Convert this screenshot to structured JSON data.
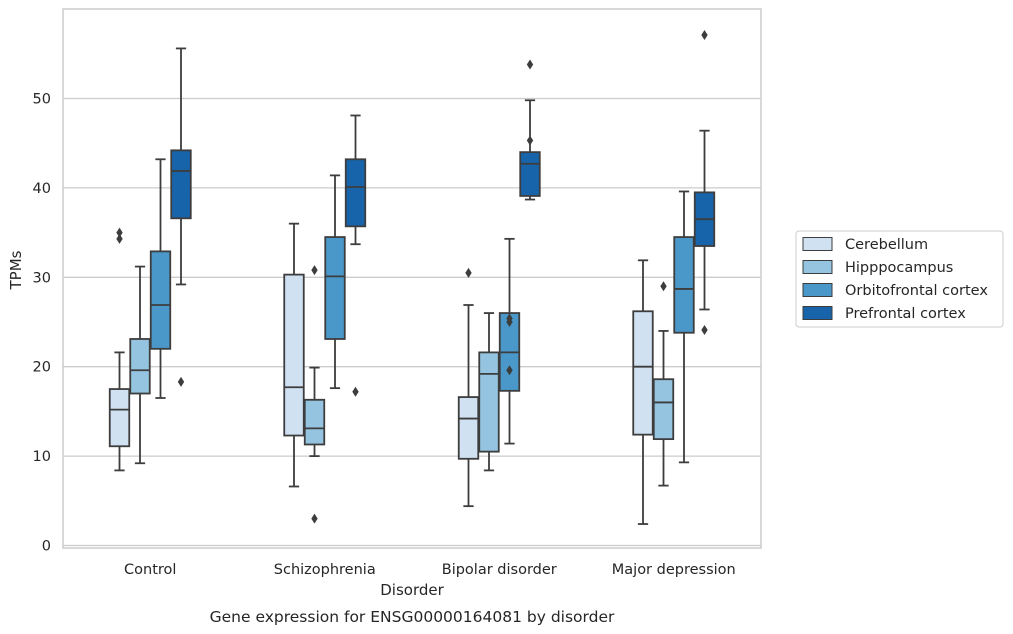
{
  "chart_data": {
    "type": "box",
    "caption": "Gene expression for ENSG00000164081 by disorder",
    "xlabel": "Disorder",
    "ylabel": "TPMs",
    "ylim": [
      0,
      58
    ],
    "yticks": [
      0,
      10,
      20,
      30,
      40,
      50
    ],
    "grid": true,
    "legend_position": "right",
    "categories": [
      "Control",
      "Schizophrenia",
      "Bipolar disorder",
      "Major depression"
    ],
    "series": [
      {
        "name": "Cerebellum",
        "color": "#d0e1f2",
        "boxes": [
          {
            "whisker_low": 8.4,
            "q1": 11.1,
            "median": 15.2,
            "q3": 17.5,
            "whisker_high": 21.6,
            "outliers": [
              34.3,
              35.0
            ]
          },
          {
            "whisker_low": 6.6,
            "q1": 12.3,
            "median": 17.7,
            "q3": 30.3,
            "whisker_high": 36.0,
            "outliers": []
          },
          {
            "whisker_low": 4.4,
            "q1": 9.7,
            "median": 14.2,
            "q3": 16.6,
            "whisker_high": 26.9,
            "outliers": [
              30.5
            ]
          },
          {
            "whisker_low": 2.4,
            "q1": 12.4,
            "median": 20.0,
            "q3": 26.2,
            "whisker_high": 31.9,
            "outliers": []
          }
        ]
      },
      {
        "name": "Hipppocampus",
        "color": "#94c4df",
        "boxes": [
          {
            "whisker_low": 9.2,
            "q1": 17.0,
            "median": 19.6,
            "q3": 23.1,
            "whisker_high": 31.2,
            "outliers": []
          },
          {
            "whisker_low": 10.0,
            "q1": 11.3,
            "median": 13.1,
            "q3": 16.3,
            "whisker_high": 19.9,
            "outliers": [
              3.0,
              30.8
            ]
          },
          {
            "whisker_low": 8.4,
            "q1": 10.5,
            "median": 19.2,
            "q3": 21.6,
            "whisker_high": 26.0,
            "outliers": []
          },
          {
            "whisker_low": 6.7,
            "q1": 11.9,
            "median": 16.0,
            "q3": 18.6,
            "whisker_high": 24.0,
            "outliers": [
              29.0
            ]
          }
        ]
      },
      {
        "name": "Orbitofrontal cortex",
        "color": "#4a98c9",
        "boxes": [
          {
            "whisker_low": 16.5,
            "q1": 22.0,
            "median": 26.9,
            "q3": 32.9,
            "whisker_high": 43.2,
            "outliers": []
          },
          {
            "whisker_low": 17.6,
            "q1": 23.1,
            "median": 30.1,
            "q3": 34.5,
            "whisker_high": 41.4,
            "outliers": []
          },
          {
            "whisker_low": 11.4,
            "q1": 17.3,
            "median": 21.6,
            "q3": 26.0,
            "whisker_high": 34.3,
            "outliers": [
              19.6,
              25.0,
              25.4
            ]
          },
          {
            "whisker_low": 9.3,
            "q1": 23.8,
            "median": 28.7,
            "q3": 34.5,
            "whisker_high": 39.6,
            "outliers": []
          }
        ]
      },
      {
        "name": "Prefrontal cortex",
        "color": "#1764ab",
        "boxes": [
          {
            "whisker_low": 29.2,
            "q1": 36.6,
            "median": 41.9,
            "q3": 44.2,
            "whisker_high": 55.6,
            "outliers": [
              18.3
            ]
          },
          {
            "whisker_low": 33.7,
            "q1": 35.7,
            "median": 40.1,
            "q3": 43.2,
            "whisker_high": 48.1,
            "outliers": [
              17.2
            ]
          },
          {
            "whisker_low": 38.7,
            "q1": 39.1,
            "median": 42.7,
            "q3": 44.0,
            "whisker_high": 49.8,
            "outliers": [
              45.3,
              53.8
            ]
          },
          {
            "whisker_low": 26.4,
            "q1": 33.5,
            "median": 36.5,
            "q3": 39.5,
            "whisker_high": 46.4,
            "outliers": [
              24.1,
              57.1
            ]
          }
        ]
      }
    ]
  }
}
